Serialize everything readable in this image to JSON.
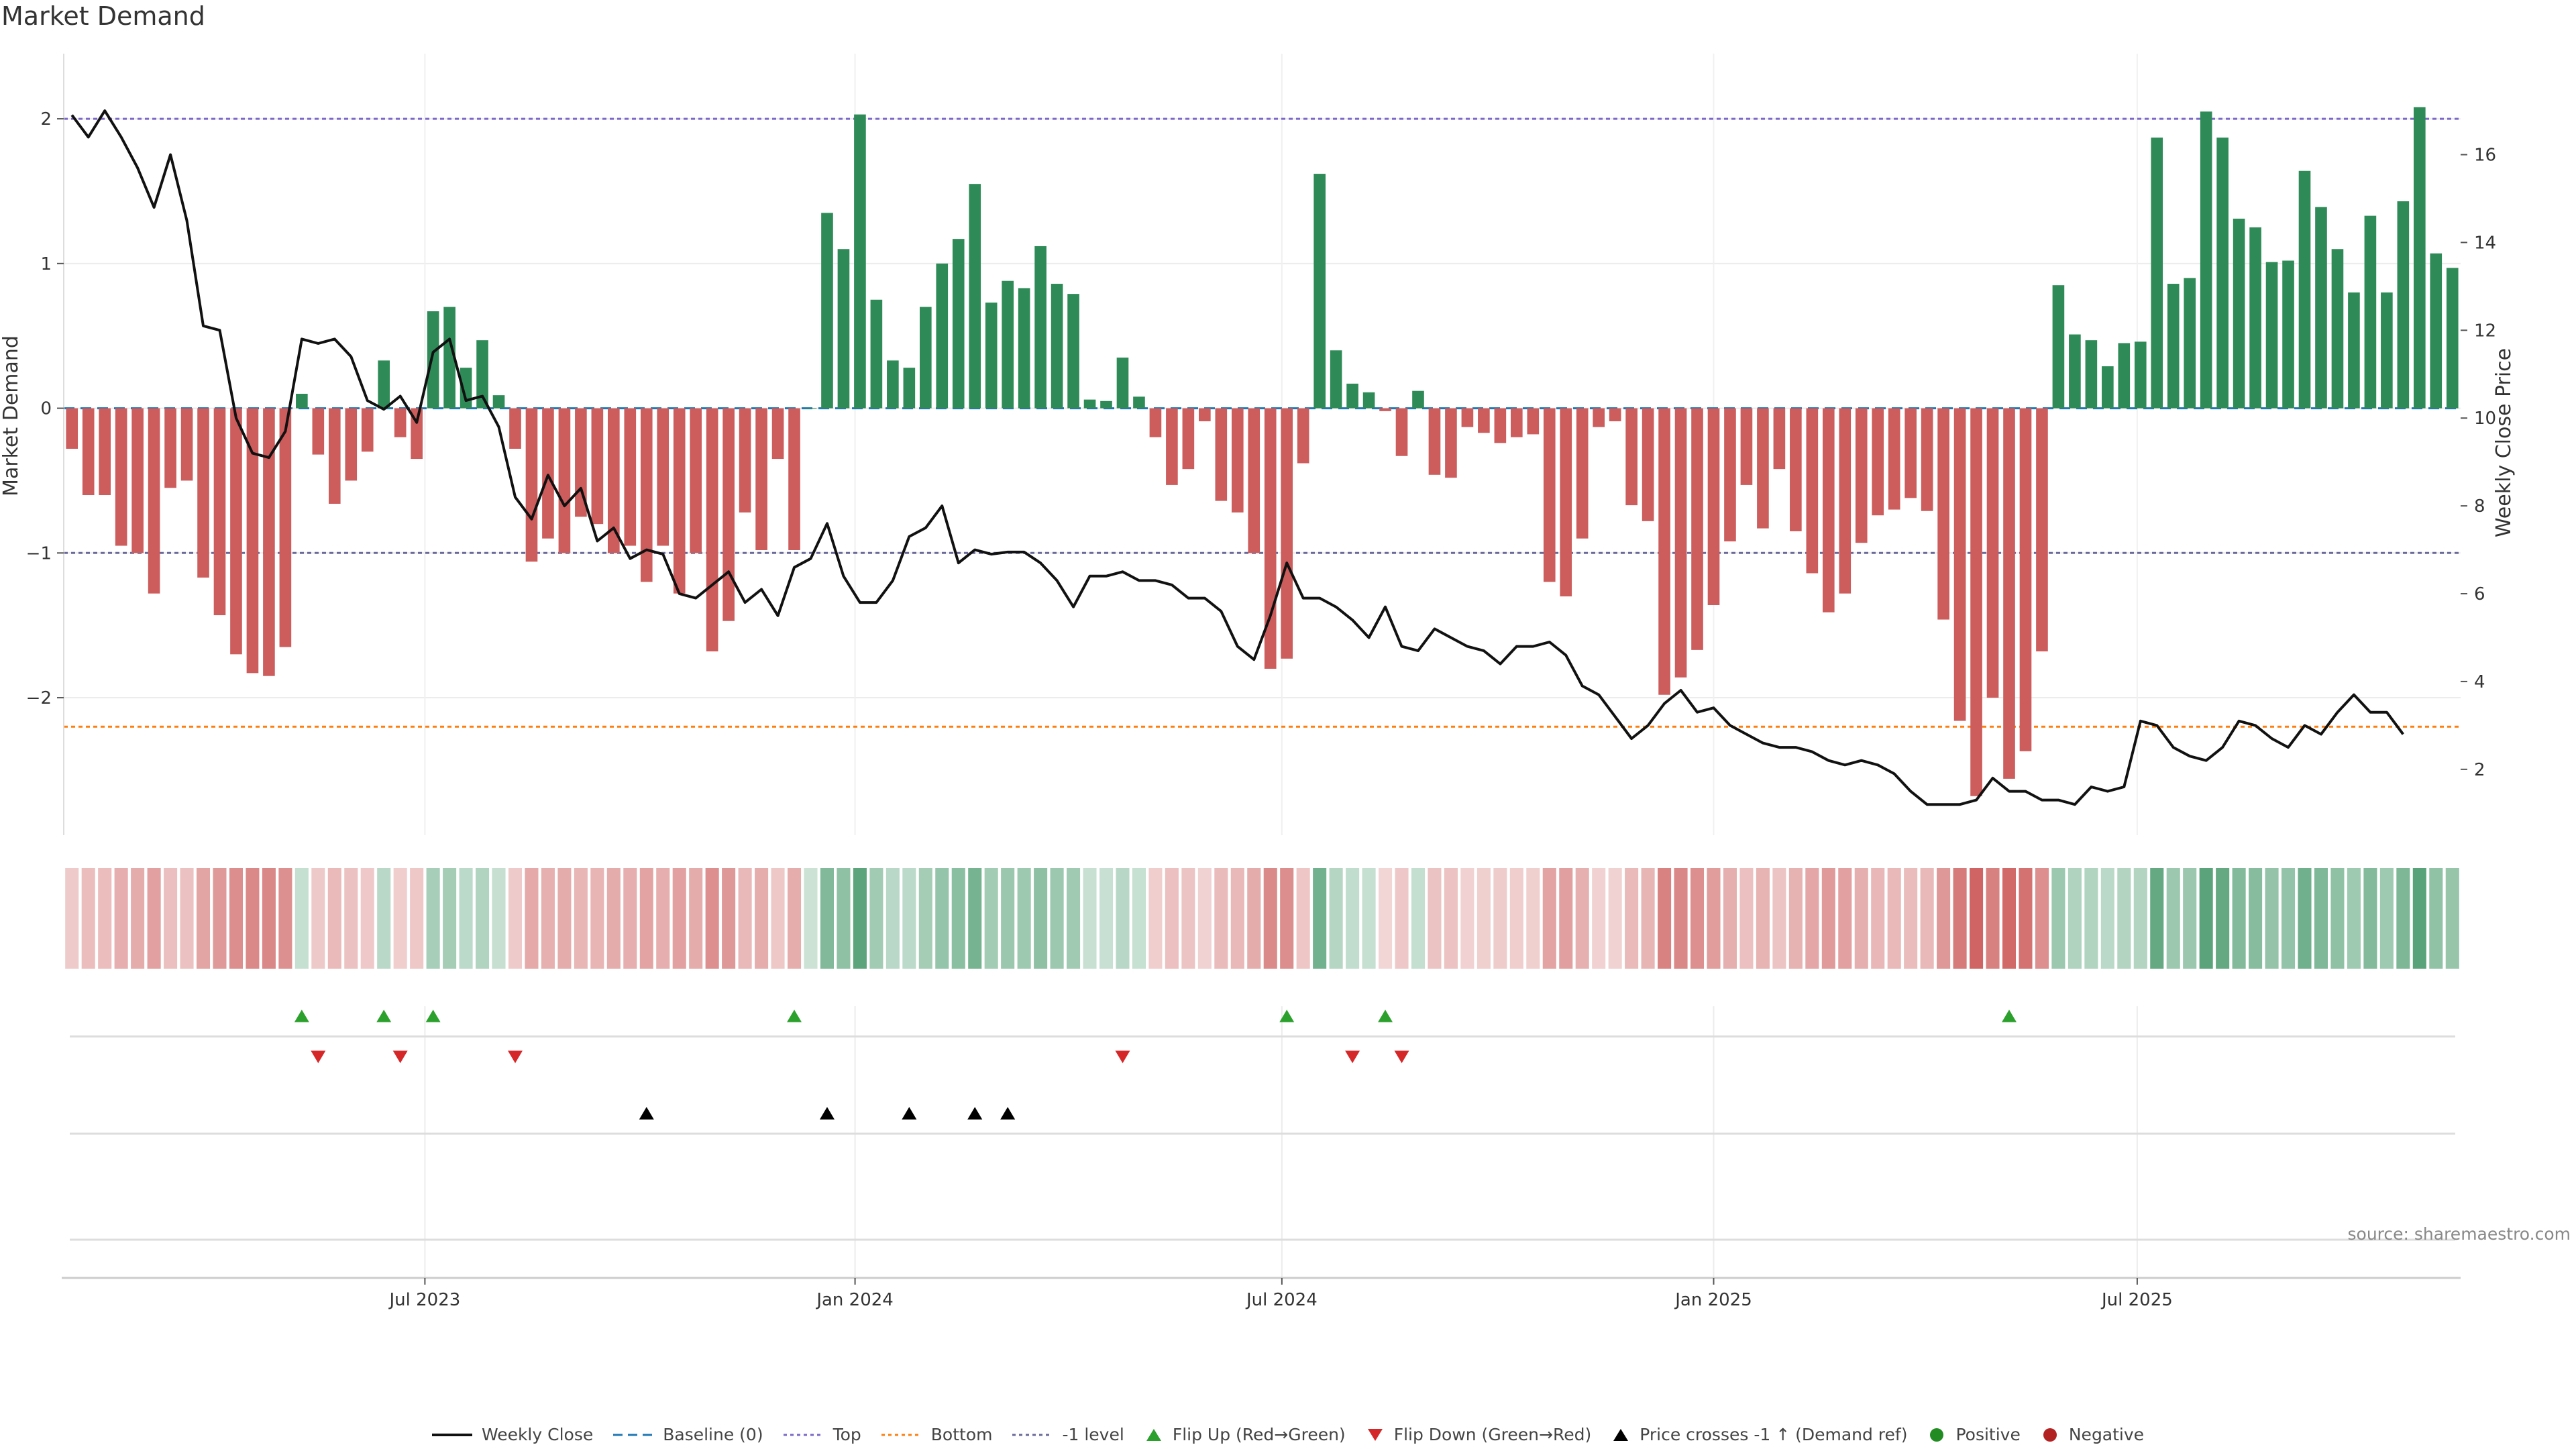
{
  "chart_data": {
    "type": "bar",
    "title": "Market Demand",
    "ylabel_left": "Market Demand",
    "ylabel_right": "Weekly Close Price",
    "source": "source: sharemaestro.com",
    "ylim_left": [
      -2.95,
      2.45
    ],
    "ylim_right": [
      0.5,
      18.3
    ],
    "yticks_left": [
      {
        "v": 2,
        "t": "2"
      },
      {
        "v": 1,
        "t": "1"
      },
      {
        "v": 0,
        "t": "0"
      },
      {
        "v": -1,
        "t": "−1"
      },
      {
        "v": -2,
        "t": "−2"
      }
    ],
    "yticks_right": [
      2,
      4,
      6,
      8,
      10,
      12,
      14,
      16
    ],
    "xticks": [
      {
        "week": 21.5,
        "label": "Jul 2023"
      },
      {
        "week": 47.7,
        "label": "Jan 2024"
      },
      {
        "week": 73.7,
        "label": "Jul 2024"
      },
      {
        "week": 100.0,
        "label": "Jan 2025"
      },
      {
        "week": 125.8,
        "label": "Jul 2025"
      }
    ],
    "reference_lines": {
      "top": 2.0,
      "bottom": -2.2,
      "minus_one": -1.0,
      "baseline": 0
    },
    "demand": [
      -0.28,
      -0.6,
      -0.6,
      -0.95,
      -1.0,
      -1.28,
      -0.55,
      -0.5,
      -1.17,
      -1.43,
      -1.7,
      -1.83,
      -1.85,
      -1.65,
      0.1,
      -0.32,
      -0.66,
      -0.5,
      -0.3,
      0.33,
      -0.2,
      -0.35,
      0.67,
      0.7,
      0.28,
      0.47,
      0.09,
      -0.28,
      -1.06,
      -0.9,
      -1.0,
      -0.75,
      -0.8,
      -1.0,
      -0.95,
      -1.2,
      -0.95,
      -1.28,
      -1.0,
      -1.68,
      -1.47,
      -0.72,
      -0.98,
      -0.35,
      -0.98,
      0,
      1.35,
      1.1,
      2.03,
      0.75,
      0.33,
      0.28,
      0.7,
      1.0,
      1.17,
      1.55,
      0.73,
      0.88,
      0.83,
      1.12,
      0.86,
      0.79,
      0.06,
      0.05,
      0.35,
      0.08,
      -0.2,
      -0.53,
      -0.42,
      -0.09,
      -0.64,
      -0.72,
      -1.0,
      -1.8,
      -1.73,
      -0.38,
      1.62,
      0.4,
      0.17,
      0.11,
      -0.02,
      -0.33,
      0.12,
      -0.46,
      -0.48,
      -0.13,
      -0.17,
      -0.24,
      -0.2,
      -0.18,
      -1.2,
      -1.3,
      -0.9,
      -0.13,
      -0.09,
      -0.67,
      -0.78,
      -1.98,
      -1.86,
      -1.67,
      -1.36,
      -0.92,
      -0.53,
      -0.83,
      -0.42,
      -0.85,
      -1.14,
      -1.41,
      -1.28,
      -0.93,
      -0.74,
      -0.7,
      -0.62,
      -0.71,
      -1.46,
      -2.16,
      -2.68,
      -2.0,
      -2.56,
      -2.37,
      -1.68,
      0.85,
      0.51,
      0.47,
      0.29,
      0.45,
      0.46,
      1.87,
      0.86,
      0.9,
      2.05,
      1.87,
      1.31,
      1.25,
      1.01,
      1.02,
      1.64,
      1.39,
      1.1,
      0.8,
      1.33,
      0.8,
      1.43,
      2.08,
      1.07,
      0.97
    ],
    "weekly_close": [
      16.9,
      16.4,
      17.0,
      16.4,
      15.7,
      14.8,
      16.0,
      14.5,
      12.1,
      12.0,
      10.0,
      9.2,
      9.1,
      9.7,
      11.8,
      11.7,
      11.8,
      11.4,
      10.4,
      10.2,
      10.5,
      9.9,
      11.5,
      11.8,
      10.4,
      10.5,
      9.8,
      8.2,
      7.7,
      8.7,
      8.0,
      8.4,
      7.2,
      7.5,
      6.8,
      7.0,
      6.9,
      6.0,
      5.9,
      6.2,
      6.5,
      5.8,
      6.1,
      5.5,
      6.6,
      6.8,
      7.6,
      6.4,
      5.8,
      5.8,
      6.3,
      7.3,
      7.5,
      8.0,
      6.7,
      7.0,
      6.9,
      6.95,
      6.95,
      6.7,
      6.3,
      5.7,
      6.4,
      6.4,
      6.5,
      6.3,
      6.3,
      6.2,
      5.9,
      5.9,
      5.6,
      4.8,
      4.5,
      5.5,
      6.7,
      5.9,
      5.9,
      5.7,
      5.4,
      5.0,
      5.7,
      4.8,
      4.7,
      5.2,
      5.0,
      4.8,
      4.7,
      4.4,
      4.8,
      4.8,
      4.9,
      4.6,
      3.9,
      3.7,
      3.2,
      2.7,
      3.0,
      3.5,
      3.8,
      3.3,
      3.4,
      3.0,
      2.8,
      2.6,
      2.5,
      2.5,
      2.4,
      2.2,
      2.1,
      2.2,
      2.1,
      1.9,
      1.5,
      1.2,
      1.2,
      1.2,
      1.3,
      1.8,
      1.5,
      1.5,
      1.3,
      1.3,
      1.2,
      1.6,
      1.5,
      1.6,
      3.1,
      3.0,
      2.5,
      2.3,
      2.2,
      2.5,
      3.1,
      3.0,
      2.7,
      2.5,
      3.0,
      2.8,
      3.3,
      3.7,
      3.3,
      3.3,
      2.8
    ],
    "flip_up_weeks": [
      14,
      19,
      22,
      44,
      74,
      80,
      118
    ],
    "flip_down_weeks": [
      15,
      20,
      27,
      64,
      78,
      81
    ],
    "price_cross_weeks": [
      35,
      46,
      51,
      55,
      57
    ],
    "legend": [
      {
        "key": "weekly_close",
        "label": "Weekly Close"
      },
      {
        "key": "baseline",
        "label": "Baseline (0)"
      },
      {
        "key": "top",
        "label": "Top"
      },
      {
        "key": "bottom",
        "label": "Bottom"
      },
      {
        "key": "minus_one",
        "label": "-1 level"
      },
      {
        "key": "flip_up",
        "label": "Flip Up (Red→Green)"
      },
      {
        "key": "flip_down",
        "label": "Flip Down (Green→Red)"
      },
      {
        "key": "price_cross",
        "label": "Price crosses -1 ↑ (Demand ref)"
      },
      {
        "key": "positive",
        "label": "Positive"
      },
      {
        "key": "negative",
        "label": "Negative"
      }
    ],
    "colors": {
      "positive": "#2e8b57",
      "negative": "#cd5c5c",
      "price": "#111111",
      "baseline": "#1f77b4",
      "top": "#7b68c8",
      "bottom": "#ff7f0e",
      "minus_one": "#6a6a9a",
      "flip_up": "#2ca02c",
      "flip_down": "#d62728",
      "price_cross": "#000000",
      "legend_positive": "#228b22",
      "legend_negative": "#b22222"
    }
  }
}
